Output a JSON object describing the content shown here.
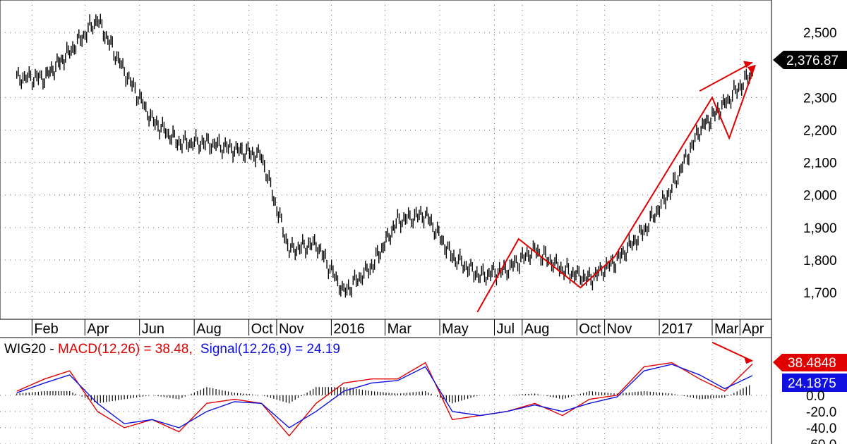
{
  "chart_data": [
    {
      "type": "line",
      "style": "ohlc-bars",
      "series_name": "WIG20",
      "x": [
        "2015-01-15",
        "2015-02-15",
        "2015-03-15",
        "2015-04-15",
        "2015-05-15",
        "2015-06-15",
        "2015-07-15",
        "2015-08-15",
        "2015-09-15",
        "2015-10-15",
        "2015-11-15",
        "2015-12-15",
        "2016-01-15",
        "2016-02-15",
        "2016-03-15",
        "2016-04-15",
        "2016-05-15",
        "2016-06-15",
        "2016-07-15",
        "2016-08-15",
        "2016-09-15",
        "2016-10-15",
        "2016-11-15",
        "2016-12-15",
        "2017-01-15",
        "2017-02-15",
        "2017-03-15",
        "2017-04-15"
      ],
      "values": [
        2360,
        2360,
        2440,
        2540,
        2380,
        2230,
        2160,
        2160,
        2140,
        2120,
        1830,
        1850,
        1700,
        1780,
        1920,
        1940,
        1810,
        1750,
        1770,
        1830,
        1770,
        1740,
        1800,
        1890,
        2020,
        2200,
        2280,
        2376.87
      ],
      "ylim": [
        1620,
        2600
      ],
      "y_ticks": [
        "1,700",
        "1,800",
        "1,900",
        "2,000",
        "2,100",
        "2,200",
        "2,300",
        "2,500"
      ],
      "x_tick_labels": [
        "Feb",
        "Apr",
        "Jun",
        "Aug",
        "Oct",
        "Nov",
        "2016",
        "Mar",
        "May",
        "Jul",
        "Aug",
        "Oct",
        "Nov",
        "2017",
        "Mar",
        "Apr"
      ],
      "last_value_label": "2,376.87",
      "last_value_tag_color": "#000000",
      "grid": true,
      "annotation_color": "#e00000",
      "annotation_description": "red trend arrows: zig-zag up from Jun 2016 low, then up to Apr 2017"
    },
    {
      "type": "line",
      "indicator": "MACD",
      "legend_text": {
        "prefix": "WIG20 - ",
        "macd": "MACD(12,26) = 38.48,",
        "signal": "Signal(12,26,9) = 24.19"
      },
      "series": [
        {
          "name": "MACD(12,26)",
          "color": "#e00000",
          "values": [
            5,
            20,
            30,
            -20,
            -40,
            -30,
            -45,
            -10,
            -5,
            -10,
            -50,
            -10,
            15,
            20,
            20,
            40,
            -30,
            -25,
            -20,
            -10,
            -25,
            -5,
            0,
            35,
            40,
            20,
            5,
            38.48
          ]
        },
        {
          "name": "Signal(12,26,9)",
          "color": "#1010e0",
          "values": [
            3,
            15,
            25,
            -10,
            -35,
            -30,
            -40,
            -20,
            -8,
            -10,
            -40,
            -20,
            5,
            15,
            18,
            35,
            -20,
            -25,
            -20,
            -12,
            -20,
            -10,
            -2,
            30,
            38,
            25,
            8,
            24.19
          ]
        }
      ],
      "histogram_color": "#000000",
      "ylim": [
        -60,
        70
      ],
      "y_ticks": [
        "0.0",
        "-20.0",
        "-40.0",
        "-60.0"
      ],
      "macd_tag": "38.4848",
      "signal_tag": "24.1875",
      "annotation_color": "#e00000",
      "annotation_description": "red arrow pointing down from Mar 2017 peak to Apr 2017"
    }
  ],
  "colors": {
    "price": "#000000",
    "arrows": "#e00000",
    "macd_tag_bg": "#e00000",
    "signal_tag_bg": "#1010e0",
    "grid": "#555555"
  }
}
